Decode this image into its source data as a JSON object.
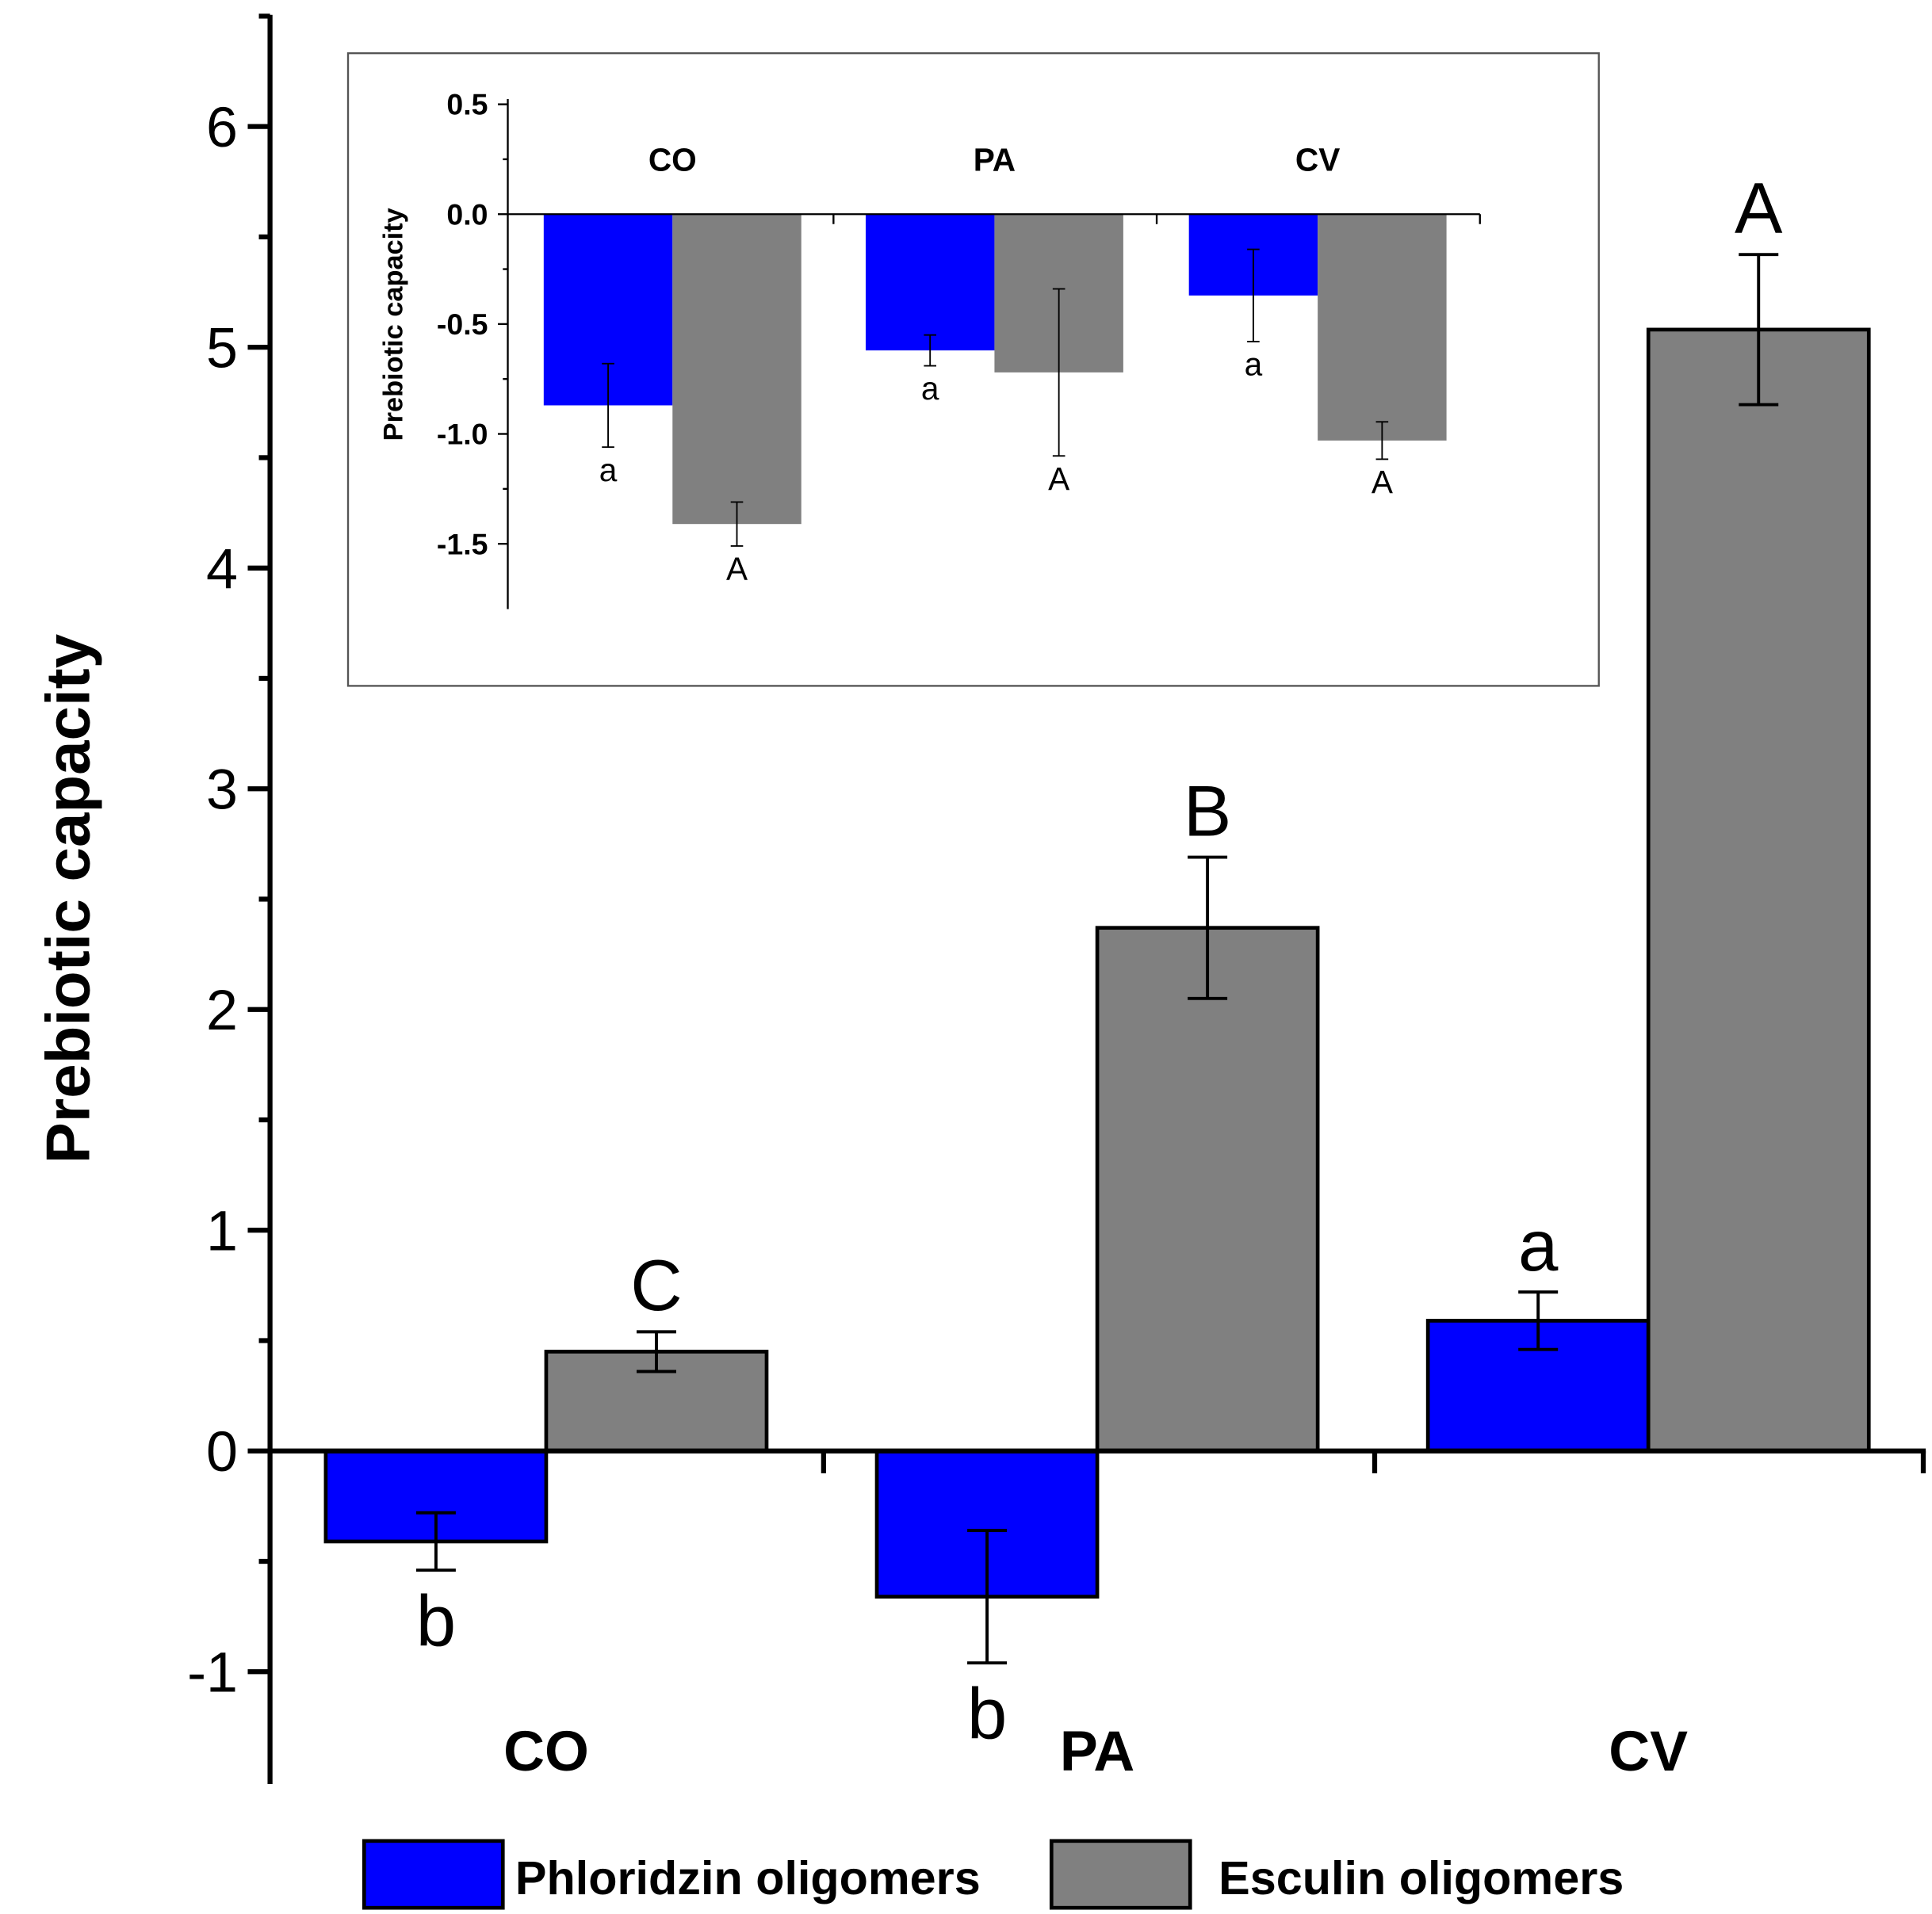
{
  "chart_data": [
    {
      "type": "bar",
      "title": "",
      "xlabel": "",
      "ylabel": "Prebiotic capacity",
      "ylim": [
        -1.5,
        6.5
      ],
      "yticks": [
        "-1",
        "0",
        "1",
        "2",
        "3",
        "4",
        "5",
        "6"
      ],
      "categories": [
        "CO",
        "PA",
        "CV"
      ],
      "series": [
        {
          "name": "Phloridzin oligomers",
          "color": "#0000ff",
          "values": [
            -0.41,
            -0.66,
            0.59
          ],
          "errors": [
            0.13,
            0.3,
            0.13
          ],
          "letters": [
            "b",
            "b",
            "a"
          ]
        },
        {
          "name": "Esculin oligomers",
          "color": "#808080",
          "values": [
            0.45,
            2.37,
            5.08
          ],
          "errors": [
            0.09,
            0.32,
            0.34
          ],
          "letters": [
            "C",
            "B",
            "A"
          ]
        }
      ],
      "legend": "bottom"
    },
    {
      "type": "bar",
      "title": "",
      "xlabel": "",
      "ylabel": "Prebiotic capacity",
      "ylim": [
        -1.8,
        0.55
      ],
      "yticks": [
        "-1.5",
        "-1.0",
        "-0.5",
        "0.0",
        "0.5"
      ],
      "categories": [
        "CO",
        "PA",
        "CV"
      ],
      "series": [
        {
          "name": "Phloridzin oligomers",
          "color": "#0000ff",
          "values": [
            -0.87,
            -0.62,
            -0.37
          ],
          "errors": [
            0.19,
            0.07,
            0.21
          ],
          "letters": [
            "a",
            "a",
            "a"
          ]
        },
        {
          "name": "Esculin oligomers",
          "color": "#808080",
          "values": [
            -1.41,
            -0.72,
            -1.03
          ],
          "errors": [
            0.1,
            0.38,
            0.085
          ],
          "letters": [
            "A",
            "A",
            "A"
          ]
        }
      ],
      "legend": "none"
    }
  ]
}
